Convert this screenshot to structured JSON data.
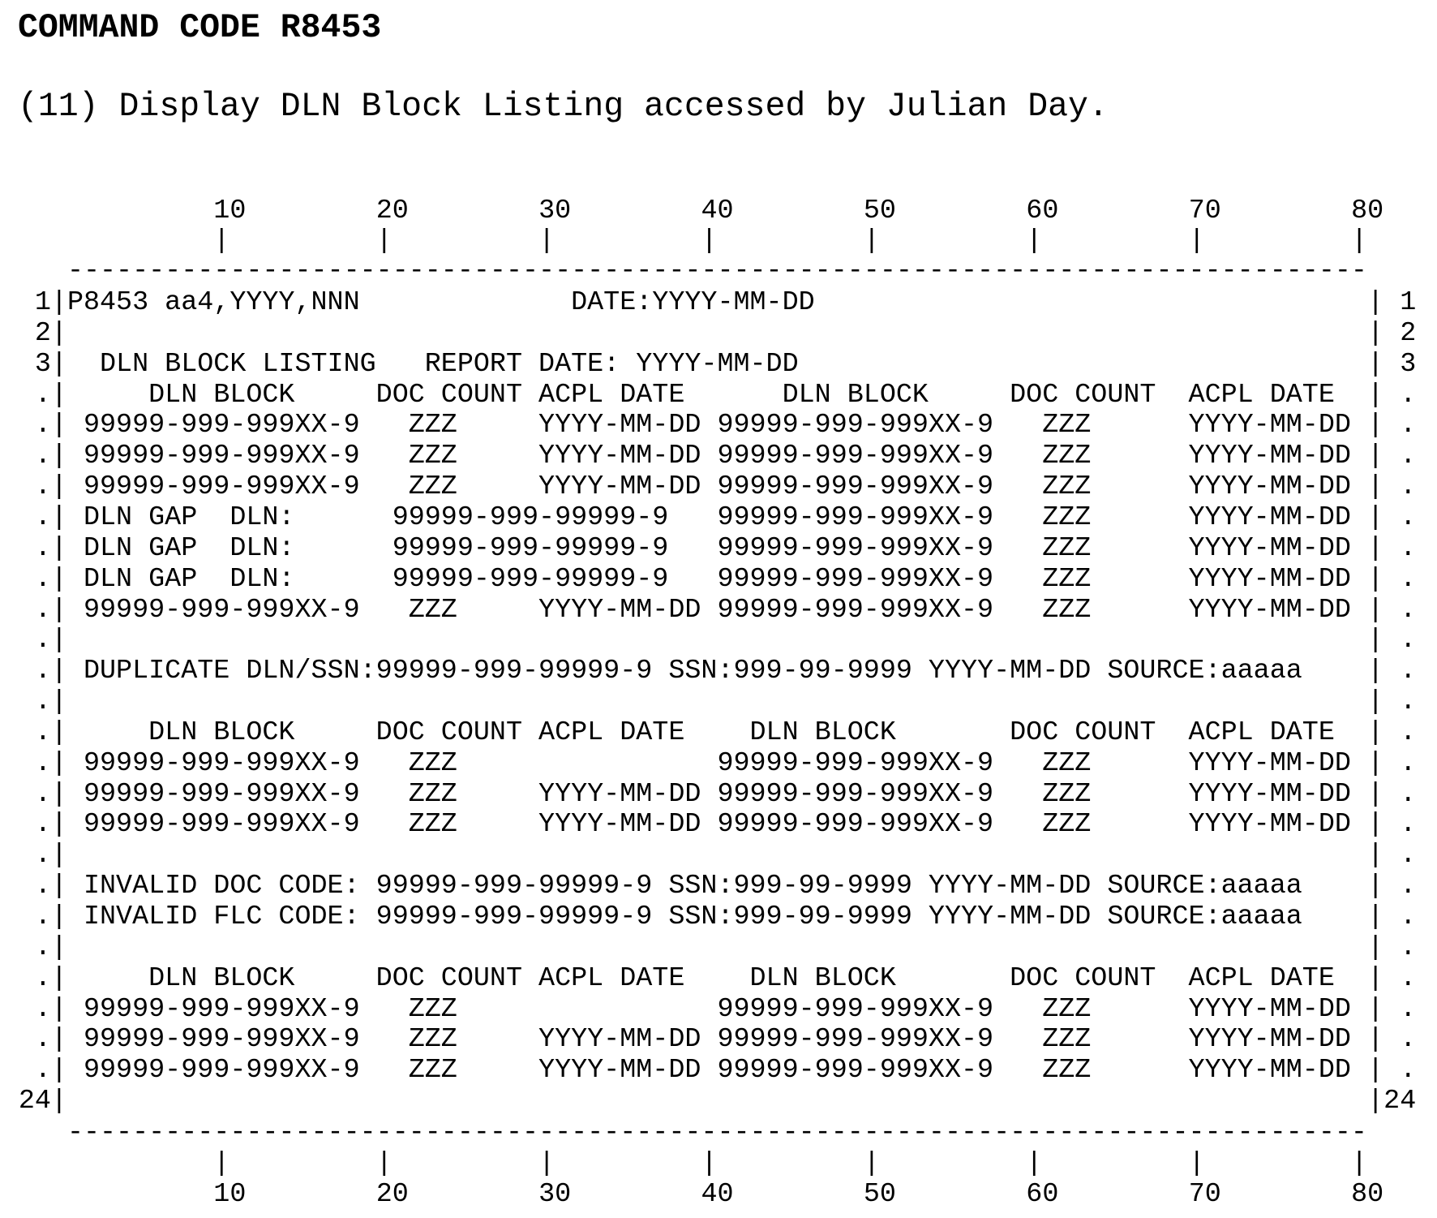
{
  "header": {
    "command_code": "COMMAND CODE R8453",
    "subtitle": "(11) Display DLN Block Listing accessed by Julian Day."
  },
  "ruler": {
    "labels": [
      "10",
      "20",
      "30",
      "40",
      "50",
      "60",
      "70",
      "80"
    ]
  },
  "screen": {
    "rows": [
      {
        "left": "1",
        "right": "1",
        "text": "P8453 aa4,YYYY,NNN             DATE:YYYY-MM-DD"
      },
      {
        "left": "2",
        "right": "2",
        "text": ""
      },
      {
        "left": "3",
        "right": "3",
        "text": "  DLN BLOCK LISTING   REPORT DATE: YYYY-MM-DD"
      },
      {
        "left": ".",
        "right": ".",
        "text": "     DLN BLOCK     DOC COUNT ACPL DATE      DLN BLOCK     DOC COUNT  ACPL DATE"
      },
      {
        "left": ".",
        "right": ".",
        "text": " 99999-999-999XX-9   ZZZ     YYYY-MM-DD 99999-999-999XX-9   ZZZ      YYYY-MM-DD"
      },
      {
        "left": ".",
        "right": ".",
        "text": " 99999-999-999XX-9   ZZZ     YYYY-MM-DD 99999-999-999XX-9   ZZZ      YYYY-MM-DD"
      },
      {
        "left": ".",
        "right": ".",
        "text": " 99999-999-999XX-9   ZZZ     YYYY-MM-DD 99999-999-999XX-9   ZZZ      YYYY-MM-DD"
      },
      {
        "left": ".",
        "right": ".",
        "text": " DLN GAP  DLN:      99999-999-99999-9   99999-999-999XX-9   ZZZ      YYYY-MM-DD"
      },
      {
        "left": ".",
        "right": ".",
        "text": " DLN GAP  DLN:      99999-999-99999-9   99999-999-999XX-9   ZZZ      YYYY-MM-DD"
      },
      {
        "left": ".",
        "right": ".",
        "text": " DLN GAP  DLN:      99999-999-99999-9   99999-999-999XX-9   ZZZ      YYYY-MM-DD"
      },
      {
        "left": ".",
        "right": ".",
        "text": " 99999-999-999XX-9   ZZZ     YYYY-MM-DD 99999-999-999XX-9   ZZZ      YYYY-MM-DD"
      },
      {
        "left": ".",
        "right": ".",
        "text": ""
      },
      {
        "left": ".",
        "right": ".",
        "text": " DUPLICATE DLN/SSN:99999-999-99999-9 SSN:999-99-9999 YYYY-MM-DD SOURCE:aaaaa"
      },
      {
        "left": ".",
        "right": ".",
        "text": ""
      },
      {
        "left": ".",
        "right": ".",
        "text": "     DLN BLOCK     DOC COUNT ACPL DATE    DLN BLOCK       DOC COUNT  ACPL DATE"
      },
      {
        "left": ".",
        "right": ".",
        "text": " 99999-999-999XX-9   ZZZ                99999-999-999XX-9   ZZZ      YYYY-MM-DD"
      },
      {
        "left": ".",
        "right": ".",
        "text": " 99999-999-999XX-9   ZZZ     YYYY-MM-DD 99999-999-999XX-9   ZZZ      YYYY-MM-DD"
      },
      {
        "left": ".",
        "right": ".",
        "text": " 99999-999-999XX-9   ZZZ     YYYY-MM-DD 99999-999-999XX-9   ZZZ      YYYY-MM-DD"
      },
      {
        "left": ".",
        "right": ".",
        "text": ""
      },
      {
        "left": ".",
        "right": ".",
        "text": " INVALID DOC CODE: 99999-999-99999-9 SSN:999-99-9999 YYYY-MM-DD SOURCE:aaaaa"
      },
      {
        "left": ".",
        "right": ".",
        "text": " INVALID FLC CODE: 99999-999-99999-9 SSN:999-99-9999 YYYY-MM-DD SOURCE:aaaaa"
      },
      {
        "left": ".",
        "right": ".",
        "text": ""
      },
      {
        "left": ".",
        "right": ".",
        "text": "     DLN BLOCK     DOC COUNT ACPL DATE    DLN BLOCK       DOC COUNT  ACPL DATE"
      },
      {
        "left": ".",
        "right": ".",
        "text": " 99999-999-999XX-9   ZZZ                99999-999-999XX-9   ZZZ      YYYY-MM-DD"
      },
      {
        "left": ".",
        "right": ".",
        "text": " 99999-999-999XX-9   ZZZ     YYYY-MM-DD 99999-999-999XX-9   ZZZ      YYYY-MM-DD"
      },
      {
        "left": ".",
        "right": ".",
        "text": " 99999-999-999XX-9   ZZZ     YYYY-MM-DD 99999-999-999XX-9   ZZZ      YYYY-MM-DD"
      },
      {
        "left": "24",
        "right": "24",
        "text": ""
      }
    ]
  }
}
